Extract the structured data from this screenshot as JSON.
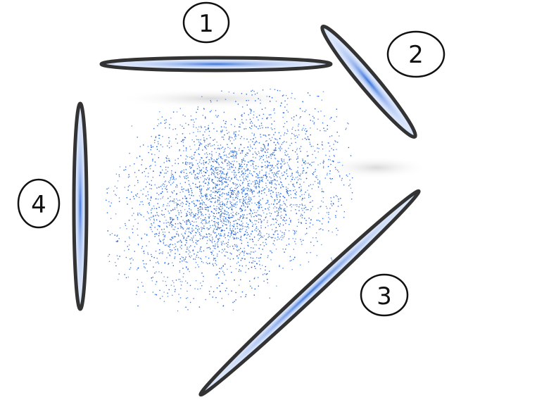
{
  "diagram": {
    "labels": [
      {
        "id": "projection-1",
        "text": "1"
      },
      {
        "id": "projection-2",
        "text": "2"
      },
      {
        "id": "projection-3",
        "text": "3"
      },
      {
        "id": "projection-4",
        "text": "4"
      }
    ],
    "colors": {
      "points": "#1a5fd6",
      "outline": "#333333",
      "ink": "#111111",
      "fill": "#dbe6fb"
    }
  }
}
